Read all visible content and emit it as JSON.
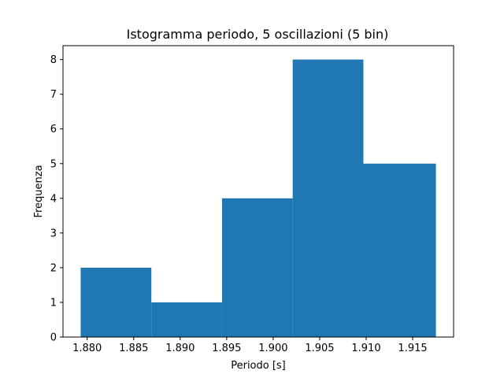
{
  "chart_data": {
    "type": "bar",
    "title": "Istogramma periodo, 5 oscillazioni (5 bin)",
    "xlabel": "Periodo [s]",
    "ylabel": "Frequenza",
    "bin_edges": [
      1.8793,
      1.8869,
      1.8945,
      1.9021,
      1.9097,
      1.9175
    ],
    "values": [
      2,
      1,
      4,
      8,
      5
    ],
    "xlim": [
      1.8774,
      1.9194
    ],
    "ylim": [
      0,
      8.4
    ],
    "xticks": [
      1.88,
      1.885,
      1.89,
      1.895,
      1.9,
      1.905,
      1.91,
      1.915
    ],
    "xtick_labels": [
      "1.880",
      "1.885",
      "1.890",
      "1.895",
      "1.900",
      "1.905",
      "1.910",
      "1.915"
    ],
    "yticks": [
      0,
      1,
      2,
      3,
      4,
      5,
      6,
      7,
      8
    ],
    "ytick_labels": [
      "0",
      "1",
      "2",
      "3",
      "4",
      "5",
      "6",
      "7",
      "8"
    ],
    "bar_color": "#1f77b4",
    "grid": false
  }
}
